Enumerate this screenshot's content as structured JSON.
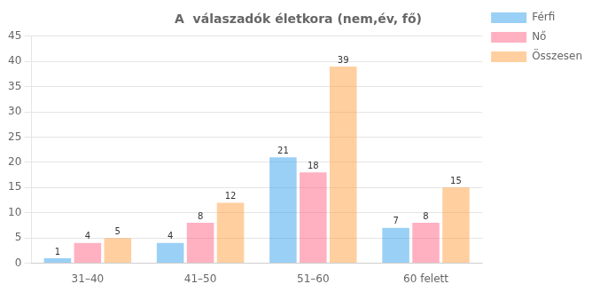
{
  "chart_data": {
    "type": "bar",
    "title": "A  válaszadók életkora (nem,év, fő)",
    "categories": [
      "31–40",
      "41–50",
      "51–60",
      "60 felett"
    ],
    "series": [
      {
        "name": "Férfi",
        "values": [
          1,
          4,
          21,
          7
        ]
      },
      {
        "name": "Nő",
        "values": [
          4,
          8,
          18,
          8
        ]
      },
      {
        "name": "Összesen",
        "values": [
          5,
          12,
          39,
          15
        ]
      }
    ],
    "ylim": [
      0,
      45
    ],
    "yticks": [
      0,
      5,
      10,
      15,
      20,
      25,
      30,
      35,
      40,
      45
    ],
    "grid": true,
    "legend": "right",
    "data_labels": true
  }
}
